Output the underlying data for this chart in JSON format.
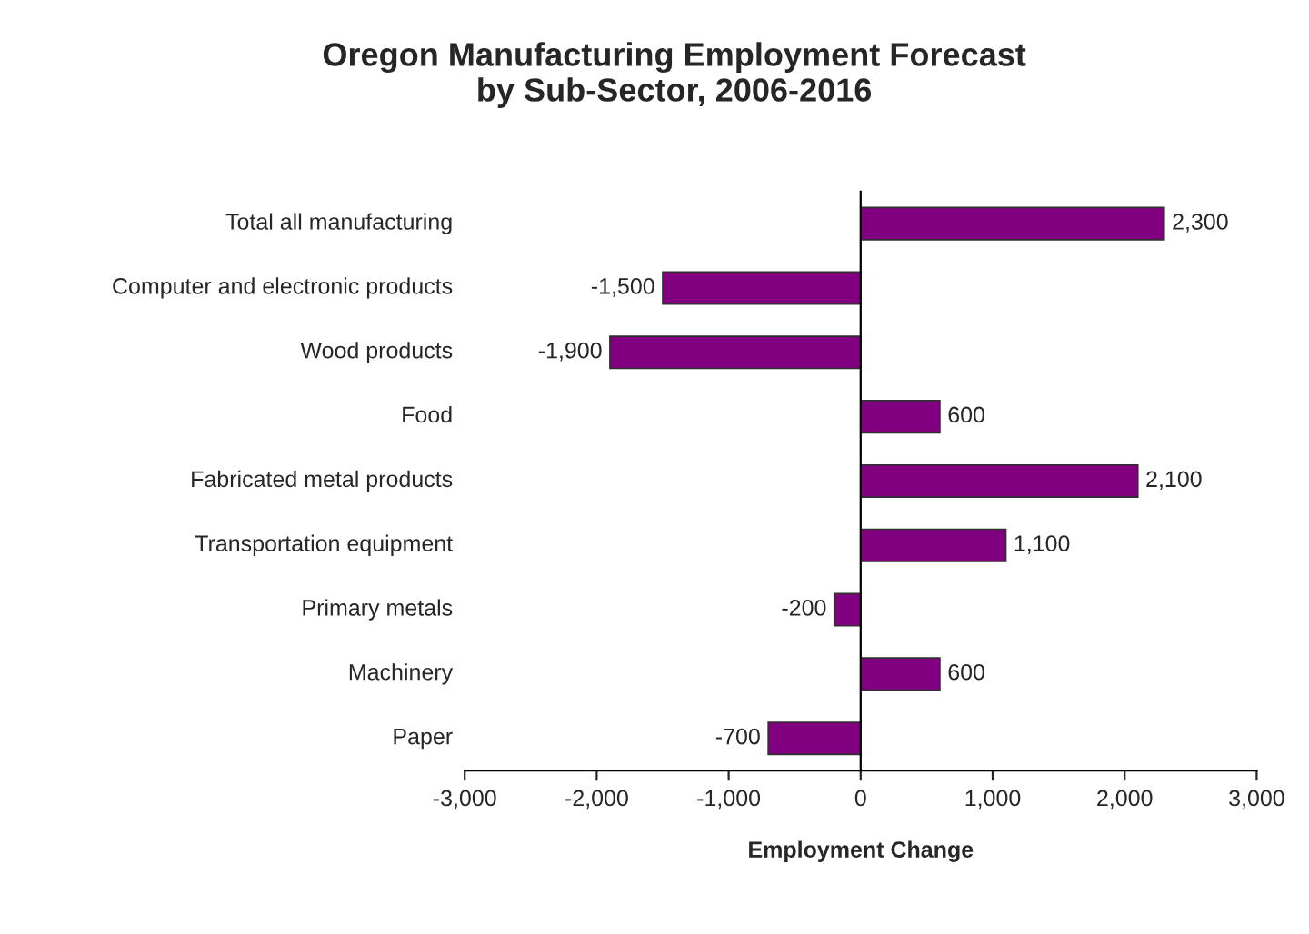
{
  "chart_data": {
    "type": "bar",
    "orientation": "horizontal",
    "title": "Oregon Manufacturing Employment Forecast\nby Sub-Sector, 2006-2016",
    "xlabel": "Employment Change",
    "categories": [
      "Total all manufacturing",
      "Computer and electronic products",
      "Wood products",
      "Food",
      "Fabricated metal products",
      "Transportation equipment",
      "Primary metals",
      "Machinery",
      "Paper"
    ],
    "values": [
      2300,
      -1500,
      -1900,
      600,
      2100,
      1100,
      -200,
      600,
      -700
    ],
    "value_labels": [
      "2,300",
      "-1,500",
      "-1,900",
      "600",
      "2,100",
      "1,100",
      "-200",
      "600",
      "-700"
    ],
    "color": "#800080",
    "xlim": [
      -3000,
      3000
    ],
    "xticks": [
      {
        "value": -3000,
        "label": "-3,000"
      },
      {
        "value": -2000,
        "label": "-2,000"
      },
      {
        "value": -1000,
        "label": "-1,000"
      },
      0,
      {
        "value": 1000,
        "label": "1,000"
      },
      {
        "value": 2000,
        "label": "2,000"
      },
      {
        "value": 3000,
        "label": "3,000"
      }
    ],
    "legend": false
  }
}
